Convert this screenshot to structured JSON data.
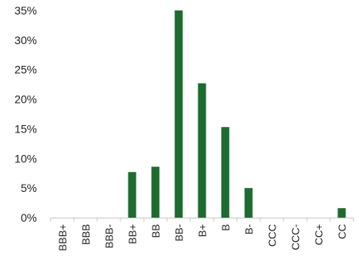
{
  "chart_data": {
    "type": "bar",
    "title": "",
    "xlabel": "",
    "ylabel": "",
    "categories": [
      "BBB+",
      "BBB",
      "BBB-",
      "BB+",
      "BB",
      "BB-",
      "B+",
      "B",
      "B-",
      "CCC",
      "CCC-",
      "CC+",
      "CC"
    ],
    "values": [
      0,
      0,
      0,
      7.7,
      8.6,
      35.0,
      22.7,
      15.3,
      5.0,
      0,
      0,
      0,
      1.6
    ],
    "ylim": [
      0,
      35
    ],
    "yticks": [
      0,
      5,
      10,
      15,
      20,
      25,
      30,
      35
    ],
    "ytick_labels": [
      "0%",
      "5%",
      "10%",
      "15%",
      "20%",
      "25%",
      "30%",
      "35%"
    ],
    "grid": false,
    "legend": "none",
    "colors": {
      "bar": "#1e6b2f",
      "axis": "#c8c8c8"
    }
  }
}
